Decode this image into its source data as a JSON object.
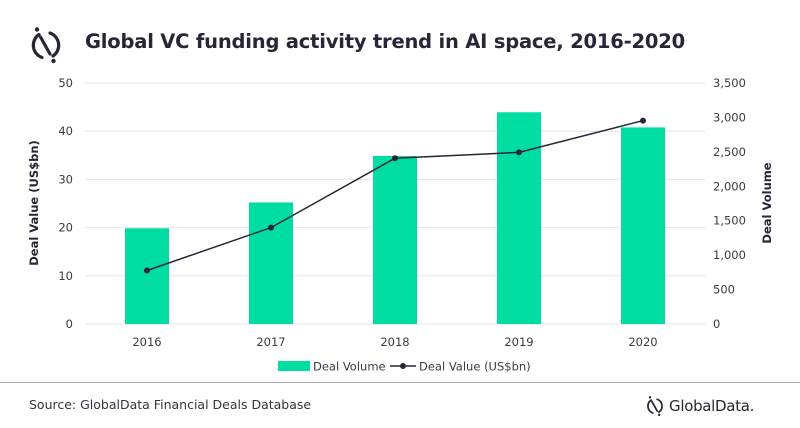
{
  "header": {
    "title": "Global VC funding activity trend in AI space, 2016-2020",
    "logo_icon": "globaldata-logo-icon"
  },
  "footer": {
    "source": "Source: GlobalData Financial Deals Database",
    "brand": "GlobalData."
  },
  "colors": {
    "bar": "#00DDA3",
    "line": "#262637",
    "grid": "#e3e3e3",
    "text": "#262637"
  },
  "chart_data": {
    "type": "bar",
    "title": "Global VC funding activity trend in AI space, 2016-2020",
    "categories": [
      "2016",
      "2017",
      "2018",
      "2019",
      "2020"
    ],
    "series": [
      {
        "name": "Deal Volume",
        "type": "bar",
        "axis": "right",
        "values": [
          1390,
          1765,
          2440,
          3075,
          2855
        ]
      },
      {
        "name": "Deal Value (US$bn)",
        "type": "line",
        "axis": "left",
        "values": [
          11.1,
          20.0,
          34.4,
          35.6,
          42.2
        ]
      }
    ],
    "xlabel": "",
    "ylabel_left": "Deal Value (US$bn)",
    "ylabel_right": "Deal Volume",
    "ylim_left": [
      0,
      50
    ],
    "ylim_right": [
      0,
      3500
    ],
    "yticks_left": [
      "0",
      "10",
      "20",
      "30",
      "40",
      "50"
    ],
    "yticks_right": [
      "0",
      "500",
      "1,000",
      "1,500",
      "2,000",
      "2,500",
      "3,000",
      "3,500"
    ],
    "grid": true,
    "legend": {
      "position": "bottom",
      "entries": [
        "Deal Volume",
        "Deal Value (US$bn)"
      ]
    }
  }
}
